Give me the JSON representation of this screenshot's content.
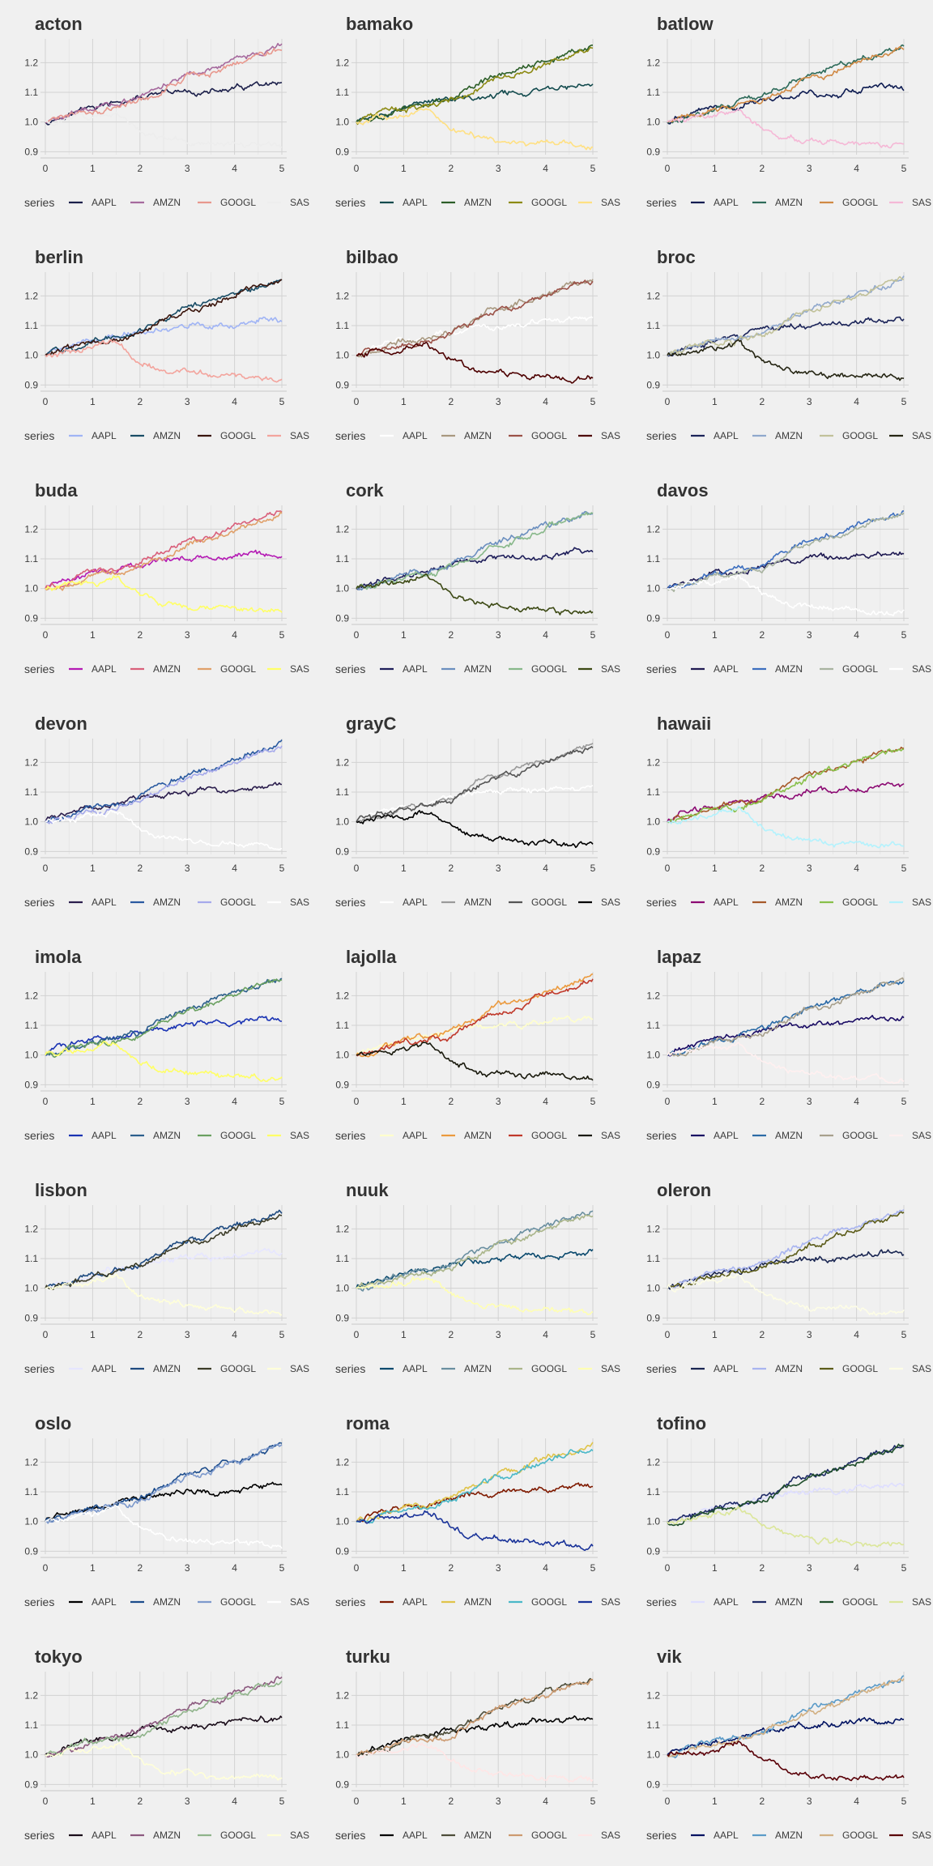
{
  "chart_data": {
    "type": "line",
    "x_ticks": [
      "0",
      "1",
      "2",
      "3",
      "4",
      "5"
    ],
    "y_ticks": [
      "0.9",
      "1.0",
      "1.1",
      "1.2"
    ],
    "xlim": [
      0,
      5
    ],
    "ylim": [
      0.89,
      1.28
    ],
    "grid": true,
    "legend_title": "series",
    "legend_position": "bottom",
    "series_names": [
      "AAPL",
      "AMZN",
      "GOOGL",
      "SAS"
    ],
    "series_trends": {
      "AAPL": {
        "x": [
          0,
          0.5,
          1,
          1.5,
          2,
          2.5,
          3,
          3.5,
          4,
          4.5,
          5
        ],
        "values": [
          1.0,
          1.03,
          1.05,
          1.06,
          1.08,
          1.09,
          1.1,
          1.1,
          1.11,
          1.12,
          1.12
        ]
      },
      "AMZN": {
        "x": [
          0,
          0.5,
          1,
          1.5,
          2,
          2.5,
          3,
          3.5,
          4,
          4.5,
          5
        ],
        "values": [
          1.0,
          1.02,
          1.05,
          1.06,
          1.08,
          1.12,
          1.16,
          1.18,
          1.21,
          1.23,
          1.26
        ]
      },
      "GOOGL": {
        "x": [
          0,
          0.5,
          1,
          1.5,
          2,
          2.5,
          3,
          3.5,
          4,
          4.5,
          5
        ],
        "values": [
          1.0,
          1.02,
          1.04,
          1.05,
          1.07,
          1.11,
          1.15,
          1.17,
          1.2,
          1.23,
          1.25
        ]
      },
      "SAS": {
        "x": [
          0,
          0.5,
          1,
          1.5,
          2,
          2.5,
          3,
          3.5,
          4,
          4.5,
          5
        ],
        "values": [
          1.0,
          1.01,
          1.02,
          1.04,
          0.98,
          0.95,
          0.94,
          0.93,
          0.93,
          0.92,
          0.92
        ]
      }
    },
    "panels": [
      {
        "title": "acton",
        "colors": [
          "#1b1f4a",
          "#a66a9e",
          "#e8988e",
          "#ededed"
        ]
      },
      {
        "title": "bamako",
        "colors": [
          "#134b4e",
          "#2c5e28",
          "#8c8a13",
          "#ffe082"
        ]
      },
      {
        "title": "batlow",
        "colors": [
          "#0e1c52",
          "#2e6b5a",
          "#d08944",
          "#f5b8d6"
        ]
      },
      {
        "title": "berlin",
        "colors": [
          "#a0b4f5",
          "#1a4d66",
          "#3a150c",
          "#f3a49d"
        ]
      },
      {
        "title": "bilbao",
        "colors": [
          "#ffffff",
          "#a89880",
          "#9b5248",
          "#4d0000"
        ]
      },
      {
        "title": "broc",
        "colors": [
          "#1b2459",
          "#90a8cc",
          "#c2c29a",
          "#262614"
        ]
      },
      {
        "title": "buda",
        "colors": [
          "#b41ab4",
          "#d95f7a",
          "#e0a06a",
          "#ffff66"
        ]
      },
      {
        "title": "cork",
        "colors": [
          "#1e1e5a",
          "#6b8fbf",
          "#88b88a",
          "#3c4914"
        ]
      },
      {
        "title": "davos",
        "colors": [
          "#1f1a52",
          "#3d6fbf",
          "#a8b3a0",
          "#ffffff"
        ]
      },
      {
        "title": "devon",
        "colors": [
          "#2b1e4d",
          "#2a5aa0",
          "#a6aaeb",
          "#ffffff"
        ]
      },
      {
        "title": "grayC",
        "colors": [
          "#ffffff",
          "#9a9a9a",
          "#555555",
          "#000000"
        ]
      },
      {
        "title": "hawaii",
        "colors": [
          "#8c0a73",
          "#a65a2a",
          "#88c04a",
          "#b3f2fd"
        ]
      },
      {
        "title": "imola",
        "colors": [
          "#1a33b3",
          "#2c5f8c",
          "#6aa060",
          "#ffff66"
        ]
      },
      {
        "title": "lajolla",
        "colors": [
          "#ffffcc",
          "#eb9a3e",
          "#c0392b",
          "#1a1a0d"
        ]
      },
      {
        "title": "lapaz",
        "colors": [
          "#1a0c64",
          "#2c6ba6",
          "#a8a08c",
          "#fff0f0"
        ]
      },
      {
        "title": "lisbon",
        "colors": [
          "#e6e6ff",
          "#1e4a80",
          "#3c3c28",
          "#ffffd9"
        ]
      },
      {
        "title": "nuuk",
        "colors": [
          "#0b4a6e",
          "#6a8fa0",
          "#aab58a",
          "#ffffb3"
        ]
      },
      {
        "title": "oleron",
        "colors": [
          "#1a2652",
          "#a8b4f0",
          "#5c5c1a",
          "#fdfde6"
        ]
      },
      {
        "title": "oslo",
        "colors": [
          "#000000",
          "#1d4d8c",
          "#7d99cc",
          "#ffffff"
        ]
      },
      {
        "title": "roma",
        "colors": [
          "#7f1a00",
          "#e0c44a",
          "#4ab8c8",
          "#1a3399"
        ]
      },
      {
        "title": "tofino",
        "colors": [
          "#dedeff",
          "#1e2a66",
          "#1e4d2a",
          "#dbe69a"
        ]
      },
      {
        "title": "tokyo",
        "colors": [
          "#1a0d1a",
          "#8c5a7f",
          "#8fb38a",
          "#ffffd9"
        ]
      },
      {
        "title": "turku",
        "colors": [
          "#000000",
          "#4d4d3a",
          "#cc9a70",
          "#ffe6e6"
        ]
      },
      {
        "title": "vik",
        "colors": [
          "#001261",
          "#5b9bc8",
          "#d2b083",
          "#590007"
        ]
      }
    ]
  }
}
